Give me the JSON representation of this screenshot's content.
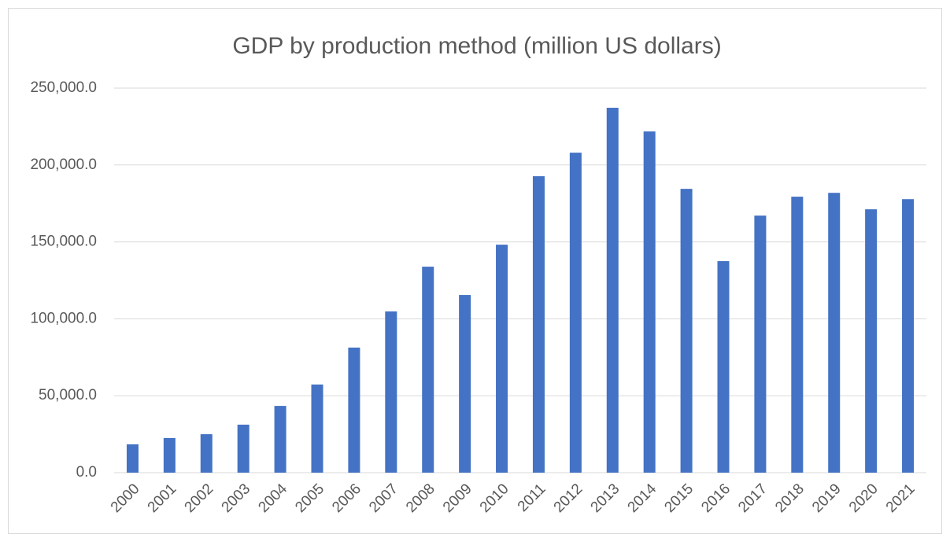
{
  "chart_data": {
    "type": "bar",
    "title": "GDP by production method (million US dollars)",
    "categories": [
      "2000",
      "2001",
      "2002",
      "2003",
      "2004",
      "2005",
      "2006",
      "2007",
      "2008",
      "2009",
      "2010",
      "2011",
      "2012",
      "2013",
      "2014",
      "2015",
      "2016",
      "2017",
      "2018",
      "2019",
      "2020",
      "2021"
    ],
    "values": [
      18400,
      22500,
      25000,
      31200,
      43400,
      57300,
      81300,
      104800,
      133900,
      115500,
      148200,
      192700,
      208000,
      237200,
      221800,
      184500,
      137500,
      167100,
      179400,
      181900,
      171200,
      177800
    ],
    "color": "#4472c4",
    "ylim": [
      0,
      250000
    ],
    "yticks": [
      {
        "value": 0,
        "label": "0.0"
      },
      {
        "value": 50000,
        "label": "50,000.0"
      },
      {
        "value": 100000,
        "label": "100,000.0"
      },
      {
        "value": 150000,
        "label": "150,000.0"
      },
      {
        "value": 200000,
        "label": "200,000.0"
      },
      {
        "value": 250000,
        "label": "250,000.0"
      }
    ],
    "grid": true
  }
}
